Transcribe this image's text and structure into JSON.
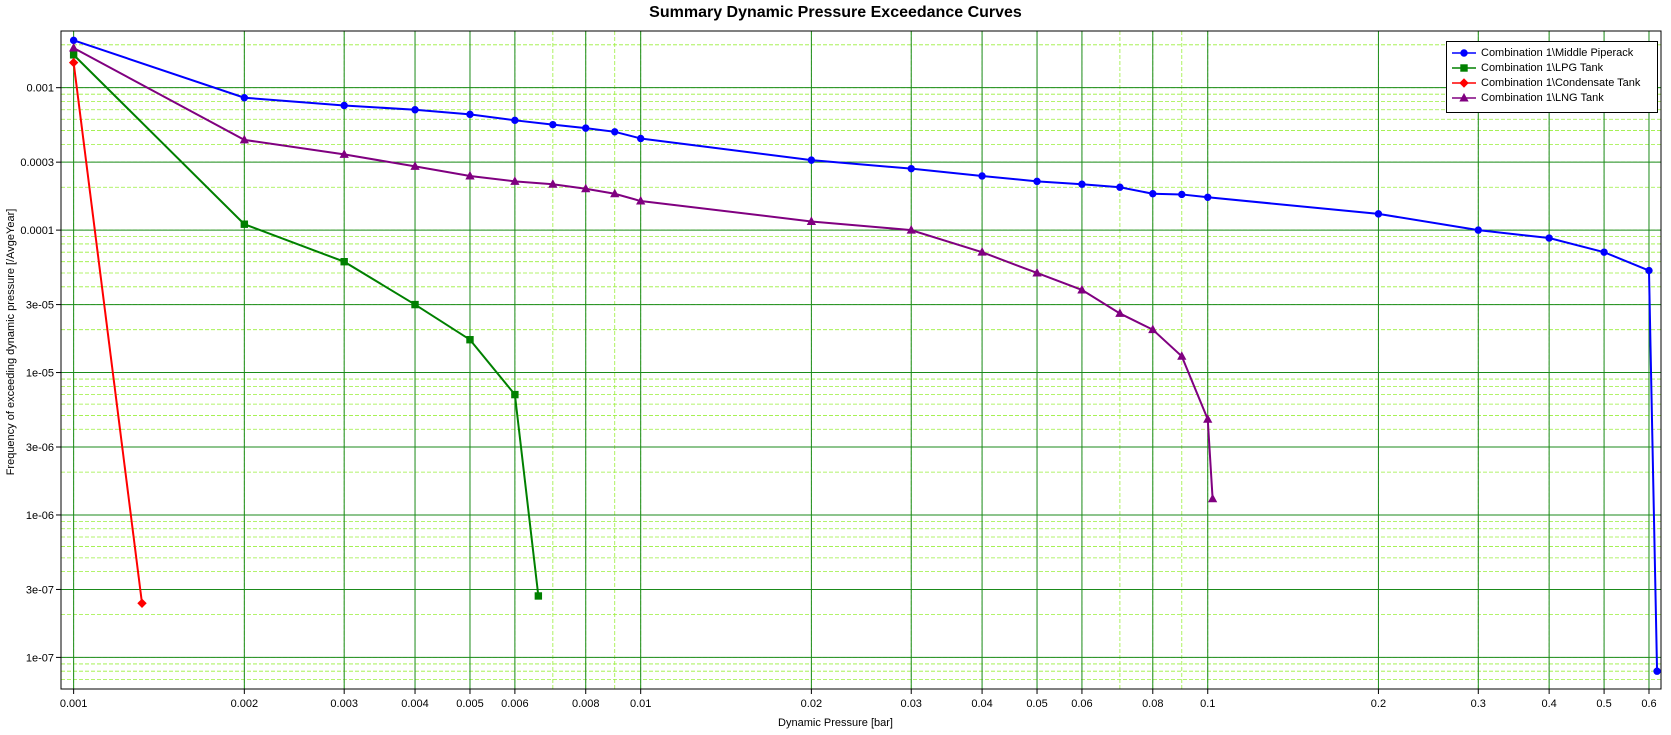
{
  "chart_data": {
    "type": "line",
    "title": "Summary Dynamic Pressure Exceedance Curves",
    "xlabel": "Dynamic Pressure [bar]",
    "ylabel": "Frequency of exceeding dynamic pressure [/AvgeYear]",
    "x_scale": "log",
    "y_scale": "log",
    "xlim": [
      0.00095,
      0.63
    ],
    "ylim": [
      6e-08,
      0.0025
    ],
    "grid": true,
    "legend_position": "top-right",
    "x_ticks": [
      "0.001",
      "0.002",
      "0.003",
      "0.004",
      "0.005",
      "0.006",
      "0.008",
      "0.01",
      "0.02",
      "0.03",
      "0.04",
      "0.05",
      "0.06",
      "0.08",
      "0.1",
      "0.2",
      "0.3",
      "0.4",
      "0.5",
      "0.6"
    ],
    "y_ticks": [
      "1e-07",
      "3e-07",
      "1e-06",
      "3e-06",
      "1e-05",
      "3e-05",
      "0.0001",
      "0.0003",
      "0.001"
    ],
    "series": [
      {
        "name": "Combination 1\\Middle Piperack",
        "color": "#0000ff",
        "marker": "circle",
        "x": [
          0.001,
          0.002,
          0.003,
          0.004,
          0.005,
          0.006,
          0.007,
          0.008,
          0.009,
          0.01,
          0.02,
          0.03,
          0.04,
          0.05,
          0.06,
          0.07,
          0.08,
          0.09,
          0.1,
          0.2,
          0.3,
          0.4,
          0.5,
          0.6,
          0.62
        ],
        "y": [
          0.00215,
          0.00085,
          0.00075,
          0.0007,
          0.00065,
          0.00059,
          0.00055,
          0.00052,
          0.00049,
          0.00044,
          0.00031,
          0.00027,
          0.00024,
          0.00022,
          0.00021,
          0.0002,
          0.00018,
          0.000178,
          0.00017,
          0.00013,
          0.0001,
          8.8e-05,
          7e-05,
          5.2e-05,
          8e-08
        ]
      },
      {
        "name": "Combination 1\\LPG Tank",
        "color": "#008000",
        "marker": "square",
        "x": [
          0.001,
          0.002,
          0.003,
          0.004,
          0.005,
          0.006,
          0.0066
        ],
        "y": [
          0.0017,
          0.00011,
          6e-05,
          3e-05,
          1.7e-05,
          7e-06,
          2.7e-07
        ]
      },
      {
        "name": "Combination 1\\Condensate Tank",
        "color": "#ff0000",
        "marker": "diamond",
        "x": [
          0.001,
          0.00132
        ],
        "y": [
          0.0015,
          2.4e-07
        ]
      },
      {
        "name": "Combination 1\\LNG Tank",
        "color": "#800080",
        "marker": "triangle",
        "x": [
          0.001,
          0.002,
          0.003,
          0.004,
          0.005,
          0.006,
          0.007,
          0.008,
          0.009,
          0.01,
          0.02,
          0.03,
          0.04,
          0.05,
          0.06,
          0.07,
          0.08,
          0.09,
          0.1,
          0.102
        ],
        "y": [
          0.0019,
          0.00043,
          0.00034,
          0.00028,
          0.00024,
          0.00022,
          0.00021,
          0.000195,
          0.00018,
          0.00016,
          0.000115,
          0.0001,
          7e-05,
          5e-05,
          3.8e-05,
          2.6e-05,
          2e-05,
          1.3e-05,
          4.7e-06,
          1.3e-06
        ]
      }
    ]
  }
}
